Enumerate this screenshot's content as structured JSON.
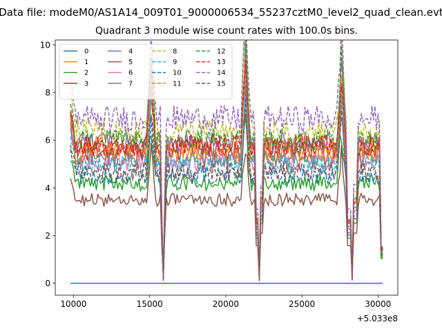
{
  "chart_data": {
    "type": "line",
    "suptitle": "Data file: modeM0/AS1A14_009T01_9000006534_55237cztM0_level2_quad_clean.evt",
    "title": "Quadrant 3 module wise count rates with 100.0s bins.",
    "xlabel": "",
    "ylabel": "",
    "x_offset_label": "+5.033e8",
    "x_range": [
      9800,
      30300
    ],
    "xlim": [
      8800,
      31300
    ],
    "ylim": [
      -0.5,
      10.2
    ],
    "xticks": [
      10000,
      15000,
      20000,
      25000,
      30000
    ],
    "yticks": [
      0,
      2,
      4,
      6,
      8,
      10
    ],
    "bin_seconds": 100,
    "grid": false,
    "legend": {
      "placement": "top-left",
      "columns": 4
    },
    "dropouts": [
      {
        "start": 15800,
        "end": 16000,
        "min_at": 15900,
        "recover": 16100
      },
      {
        "start": 22000,
        "end": 22400,
        "min_at": 22200,
        "recover": 22500
      },
      {
        "start": 28000,
        "end": 28600,
        "min_at": 28300,
        "recover": 28700
      },
      {
        "start": 30200,
        "end": 30300,
        "min_at": 30300,
        "recover": 30300
      }
    ],
    "flares": [
      {
        "x": 15100,
        "scale": 1.55
      },
      {
        "x": 21300,
        "scale": 1.65
      },
      {
        "x": 27600,
        "scale": 1.55
      }
    ],
    "series": [
      {
        "name": "0",
        "color": "#1f77b4",
        "dashed": false,
        "base": 0.0
      },
      {
        "name": "1",
        "color": "#ff7f0e",
        "dashed": false,
        "base": 5.7
      },
      {
        "name": "2",
        "color": "#2ca02c",
        "dashed": false,
        "base": 4.2
      },
      {
        "name": "3",
        "color": "#d62728",
        "dashed": false,
        "base": 5.6
      },
      {
        "name": "4",
        "color": "#9467bd",
        "dashed": false,
        "base": 5.9
      },
      {
        "name": "5",
        "color": "#8c564b",
        "dashed": false,
        "base": 3.5
      },
      {
        "name": "6",
        "color": "#e377c2",
        "dashed": false,
        "base": 5.1
      },
      {
        "name": "7",
        "color": "#7f7f7f",
        "dashed": false,
        "base": 5.3
      },
      {
        "name": "8",
        "color": "#bcbd22",
        "dashed": true,
        "base": 6.4
      },
      {
        "name": "9",
        "color": "#17becf",
        "dashed": true,
        "base": 5.0
      },
      {
        "name": "10",
        "color": "#1f77b4",
        "dashed": true,
        "base": 4.5
      },
      {
        "name": "11",
        "color": "#ff7f0e",
        "dashed": true,
        "base": 5.5
      },
      {
        "name": "12",
        "color": "#2ca02c",
        "dashed": true,
        "base": 6.0
      },
      {
        "name": "13",
        "color": "#d62728",
        "dashed": true,
        "base": 5.8
      },
      {
        "name": "14",
        "color": "#9467bd",
        "dashed": true,
        "base": 6.9
      },
      {
        "name": "15",
        "color": "#8c564b",
        "dashed": true,
        "base": 4.7
      }
    ]
  }
}
